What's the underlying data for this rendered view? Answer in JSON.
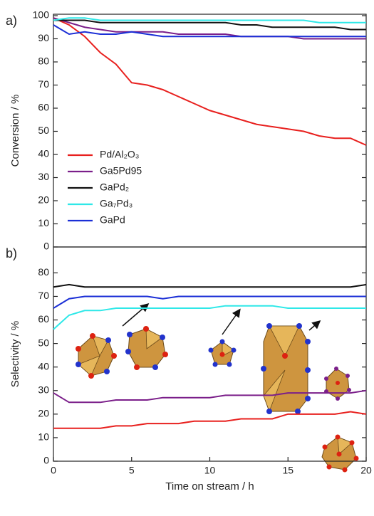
{
  "chart_data": [
    {
      "type": "line",
      "label": "a)",
      "ylabel": "Conversion / %",
      "xlim": [
        0,
        20
      ],
      "ylim": [
        0,
        100
      ],
      "yticks": [
        0,
        10,
        20,
        30,
        40,
        50,
        60,
        70,
        80,
        90,
        100
      ],
      "legend": "lower left",
      "x": [
        0,
        1,
        2,
        3,
        4,
        5,
        6,
        7,
        8,
        9,
        10,
        11,
        12,
        13,
        14,
        15,
        16,
        17,
        18,
        19,
        20
      ],
      "series": [
        {
          "name": "Pd/Al₂O₃",
          "color": "#e8201e",
          "values": [
            99,
            96,
            91,
            84,
            79,
            71,
            70,
            68,
            65,
            62,
            59,
            57,
            55,
            53,
            52,
            51,
            50,
            48,
            47,
            47,
            44
          ]
        },
        {
          "name": "Ga5Pd95",
          "color": "#7b1f8a",
          "values": [
            99,
            97,
            95,
            94,
            93,
            93,
            93,
            93,
            92,
            92,
            92,
            92,
            91,
            91,
            91,
            91,
            90,
            90,
            90,
            90,
            90
          ]
        },
        {
          "name": "GaPd₂",
          "color": "#111111",
          "values": [
            98,
            98,
            98,
            97,
            97,
            97,
            97,
            97,
            97,
            97,
            97,
            97,
            96,
            96,
            95,
            95,
            95,
            95,
            95,
            94,
            94
          ]
        },
        {
          "name": "Ga₇Pd₃",
          "color": "#2ee8e8",
          "values": [
            98,
            99,
            99,
            98,
            98,
            98,
            98,
            98,
            98,
            98,
            98,
            98,
            98,
            98,
            98,
            98,
            98,
            97,
            97,
            97,
            97
          ]
        },
        {
          "name": "GaPd",
          "color": "#1b2fd6",
          "values": [
            96,
            92,
            93,
            92,
            92,
            93,
            92,
            91,
            91,
            91,
            91,
            91,
            91,
            91,
            91,
            91,
            91,
            91,
            91,
            91,
            91
          ]
        }
      ]
    },
    {
      "type": "line",
      "label": "b)",
      "ylabel": "Selectivity / %",
      "xlabel": "Time on stream / h",
      "xlim": [
        0,
        20
      ],
      "xticks": [
        0,
        5,
        10,
        15,
        20
      ],
      "ylim": [
        0,
        91
      ],
      "yticks": [
        0,
        10,
        20,
        30,
        40,
        50,
        60,
        70,
        80
      ],
      "x": [
        0,
        1,
        2,
        3,
        4,
        5,
        6,
        7,
        8,
        9,
        10,
        11,
        12,
        13,
        14,
        15,
        16,
        17,
        18,
        19,
        20
      ],
      "series": [
        {
          "color": "#111111",
          "values": [
            74,
            75,
            74,
            74,
            74,
            74,
            74,
            74,
            74,
            74,
            74,
            74,
            74,
            74,
            74,
            74,
            74,
            74,
            74,
            74,
            75
          ]
        },
        {
          "color": "#1b2fd6",
          "values": [
            65,
            69,
            70,
            70,
            70,
            70,
            70,
            69,
            70,
            70,
            70,
            70,
            70,
            70,
            70,
            70,
            70,
            70,
            70,
            70,
            70
          ]
        },
        {
          "color": "#2ee8e8",
          "values": [
            56,
            62,
            64,
            64,
            65,
            65,
            65,
            65,
            65,
            65,
            65,
            66,
            66,
            66,
            66,
            65,
            65,
            65,
            65,
            65,
            65
          ]
        },
        {
          "color": "#7b1f8a",
          "values": [
            29,
            25,
            25,
            25,
            26,
            26,
            26,
            27,
            27,
            27,
            27,
            28,
            28,
            28,
            28,
            29,
            29,
            29,
            29,
            29,
            30
          ]
        },
        {
          "color": "#e8201e",
          "values": [
            14,
            14,
            14,
            14,
            15,
            15,
            16,
            16,
            16,
            17,
            17,
            17,
            18,
            18,
            18,
            20,
            20,
            20,
            20,
            21,
            20
          ]
        }
      ]
    }
  ]
}
